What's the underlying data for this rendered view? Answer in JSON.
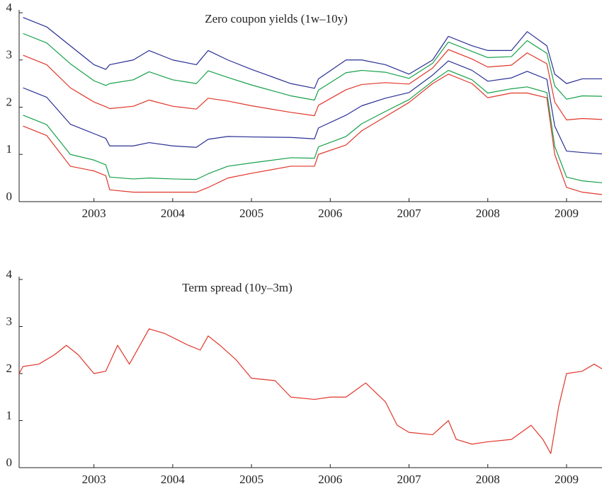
{
  "chart_data": [
    {
      "type": "line",
      "title": "Zero coupon yields (1w–10y)",
      "xlim": [
        2002.05,
        2009.45
      ],
      "xticks": [
        2003,
        2004,
        2005,
        2006,
        2007,
        2008,
        2009
      ],
      "ylim": [
        0,
        4
      ],
      "yticks": [
        0,
        1,
        2,
        3,
        4
      ],
      "grid": false,
      "x": [
        2002.1,
        2002.4,
        2002.7,
        2003.0,
        2003.15,
        2003.2,
        2003.5,
        2003.7,
        2004.0,
        2004.3,
        2004.45,
        2004.7,
        2005.0,
        2005.5,
        2005.8,
        2005.85,
        2006.2,
        2006.4,
        2006.7,
        2007.0,
        2007.3,
        2007.5,
        2007.8,
        2008.0,
        2008.3,
        2008.5,
        2008.75,
        2008.85,
        2009.0,
        2009.2,
        2009.45
      ],
      "series": [
        {
          "color": "#e0362a",
          "values": [
            1.6,
            1.4,
            0.75,
            0.65,
            0.55,
            0.25,
            0.2,
            0.2,
            0.2,
            0.2,
            0.3,
            0.5,
            0.6,
            0.75,
            0.75,
            1.0,
            1.2,
            1.5,
            1.8,
            2.1,
            2.5,
            2.7,
            2.5,
            2.2,
            2.3,
            2.3,
            2.2,
            1.0,
            0.3,
            0.2,
            0.15
          ]
        },
        {
          "color": "#16a04a",
          "values": [
            1.83,
            1.63,
            1.0,
            0.88,
            0.78,
            0.52,
            0.48,
            0.5,
            0.48,
            0.47,
            0.59,
            0.75,
            0.82,
            0.93,
            0.92,
            1.16,
            1.38,
            1.65,
            1.91,
            2.16,
            2.55,
            2.78,
            2.58,
            2.3,
            2.39,
            2.43,
            2.31,
            1.17,
            0.52,
            0.44,
            0.4
          ]
        },
        {
          "color": "#2a2f94",
          "values": [
            2.41,
            2.21,
            1.64,
            1.44,
            1.34,
            1.18,
            1.18,
            1.25,
            1.18,
            1.15,
            1.32,
            1.38,
            1.37,
            1.36,
            1.33,
            1.56,
            1.83,
            2.03,
            2.19,
            2.31,
            2.68,
            2.98,
            2.78,
            2.55,
            2.62,
            2.76,
            2.59,
            1.6,
            1.07,
            1.04,
            1.01
          ]
        },
        {
          "color": "#e0362a",
          "values": [
            3.1,
            2.9,
            2.41,
            2.11,
            2.01,
            1.97,
            2.02,
            2.15,
            2.02,
            1.96,
            2.19,
            2.13,
            2.03,
            1.89,
            1.82,
            2.04,
            2.37,
            2.48,
            2.52,
            2.49,
            2.83,
            3.22,
            3.02,
            2.85,
            2.89,
            3.15,
            2.92,
            2.11,
            1.73,
            1.76,
            1.74
          ]
        },
        {
          "color": "#16a04a",
          "values": [
            3.56,
            3.36,
            2.92,
            2.56,
            2.46,
            2.5,
            2.58,
            2.75,
            2.58,
            2.5,
            2.77,
            2.63,
            2.47,
            2.24,
            2.15,
            2.36,
            2.73,
            2.78,
            2.74,
            2.61,
            2.93,
            3.38,
            3.18,
            3.05,
            3.07,
            3.41,
            3.14,
            2.45,
            2.17,
            2.24,
            2.23
          ]
        },
        {
          "color": "#2a2f94",
          "values": [
            3.9,
            3.7,
            3.3,
            2.9,
            2.8,
            2.9,
            3.0,
            3.2,
            3.0,
            2.9,
            3.2,
            3.0,
            2.8,
            2.5,
            2.4,
            2.6,
            3.0,
            3.0,
            2.9,
            2.7,
            3.0,
            3.5,
            3.3,
            3.2,
            3.2,
            3.6,
            3.3,
            2.7,
            2.5,
            2.6,
            2.6
          ]
        }
      ]
    },
    {
      "type": "line",
      "title": "Term spread (10y–3m)",
      "xlim": [
        2002.05,
        2009.45
      ],
      "xticks": [
        2003,
        2004,
        2005,
        2006,
        2007,
        2008,
        2009
      ],
      "ylim": [
        0,
        4
      ],
      "yticks": [
        0,
        1,
        2,
        3,
        4
      ],
      "grid": false,
      "x": [
        2002.05,
        2002.1,
        2002.3,
        2002.5,
        2002.65,
        2002.8,
        2003.0,
        2003.15,
        2003.3,
        2003.45,
        2003.7,
        2003.9,
        2004.2,
        2004.35,
        2004.45,
        2004.6,
        2004.8,
        2005.0,
        2005.3,
        2005.5,
        2005.8,
        2006.0,
        2006.2,
        2006.45,
        2006.7,
        2006.85,
        2007.0,
        2007.3,
        2007.5,
        2007.6,
        2007.8,
        2008.0,
        2008.3,
        2008.55,
        2008.7,
        2008.8,
        2008.9,
        2009.0,
        2009.2,
        2009.35,
        2009.45
      ],
      "series": [
        {
          "color": "#e0362a",
          "values": [
            2.0,
            2.15,
            2.2,
            2.4,
            2.6,
            2.4,
            2.0,
            2.05,
            2.6,
            2.2,
            2.95,
            2.85,
            2.6,
            2.5,
            2.8,
            2.6,
            2.3,
            1.9,
            1.85,
            1.5,
            1.45,
            1.5,
            1.5,
            1.8,
            1.4,
            0.9,
            0.75,
            0.7,
            1.0,
            0.6,
            0.5,
            0.55,
            0.6,
            0.9,
            0.6,
            0.3,
            1.3,
            2.0,
            2.05,
            2.2,
            2.1
          ]
        }
      ]
    }
  ]
}
